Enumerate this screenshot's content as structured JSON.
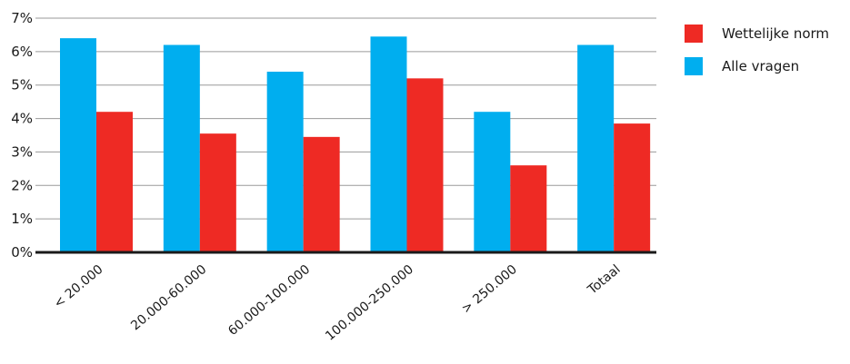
{
  "chart_data": {
    "type": "bar",
    "categories": [
      "< 20.000",
      "20.000-60.000",
      "60.000-100.000",
      "100.000-250.000",
      "> 250.000",
      "Totaal"
    ],
    "series": [
      {
        "name": "Alle vragen",
        "color": "#00aeef",
        "values": [
          6.4,
          6.2,
          5.4,
          6.45,
          4.2,
          6.2
        ]
      },
      {
        "name": "Wettelijke norm",
        "color": "#ee2a24",
        "values": [
          4.2,
          3.55,
          3.45,
          5.2,
          2.6,
          3.85
        ]
      }
    ],
    "yticks": [
      "0%",
      "1%",
      "2%",
      "3%",
      "4%",
      "5%",
      "6%",
      "7%"
    ],
    "ylim": [
      0,
      7
    ],
    "grid": true,
    "legend": [
      {
        "label": "Wettelijke norm",
        "color": "#ee2a24"
      },
      {
        "label": "Alle vragen",
        "color": "#00aeef"
      }
    ],
    "legend_position": "top-right"
  }
}
